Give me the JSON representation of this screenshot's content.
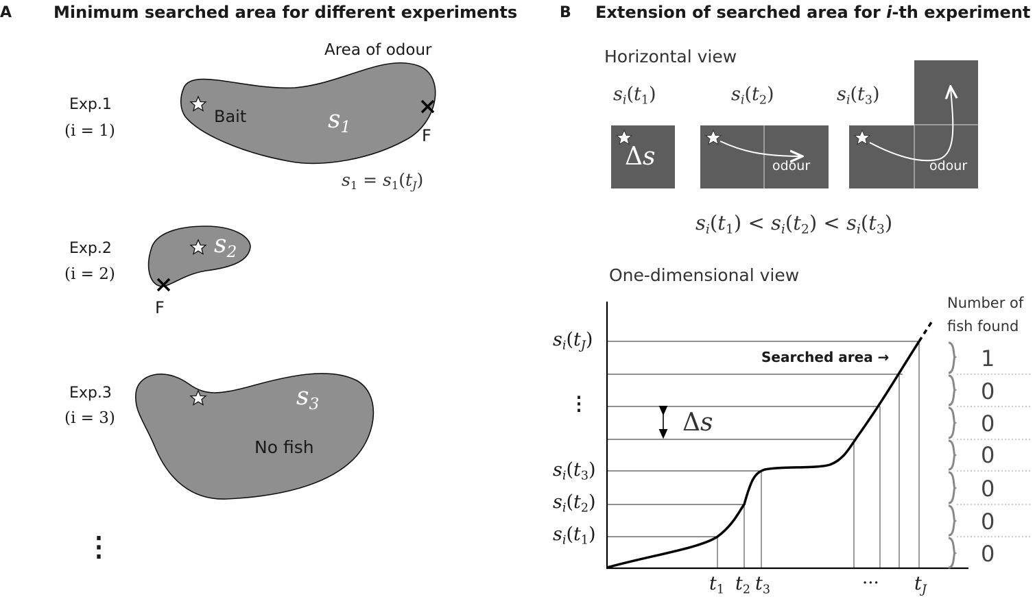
{
  "panelA": {
    "letter": "A",
    "title": "Minimum searched area for different experiments",
    "area_of_odour": "Area of odour",
    "exp1": {
      "label": "Exp.1",
      "index": "(i = 1)",
      "bait": "Bait",
      "fish_mark": "F",
      "region": "s1",
      "equation": "s1 = s1(tJ)"
    },
    "exp2": {
      "label": "Exp.2",
      "index": "(i = 2)",
      "fish_mark": "F",
      "region": "s2"
    },
    "exp3": {
      "label": "Exp.3",
      "index": "(i = 3)",
      "region": "s3",
      "no_fish": "No fish"
    },
    "continuation": "⋮"
  },
  "panelB": {
    "letter": "B",
    "title_pre": "Extension of searched area for ",
    "title_i": "i",
    "title_post": "-th experiment",
    "horizontal_view": "Horizontal view",
    "boxes": [
      {
        "label": "si(t1)",
        "content": "Δs"
      },
      {
        "label": "si(t2)",
        "content": "odour"
      },
      {
        "label": "si(t3)",
        "content": "odour"
      }
    ],
    "inequality": "si(t1) < si(t2) < si(t3)",
    "one_dim_view": "One-dimensional view",
    "number_of_fish_found": [
      "Number of",
      "fish found"
    ],
    "searched_area": "Searched area →",
    "delta_s": "Δs",
    "y_labels": [
      "si(tJ)",
      "⋮",
      "si(t3)",
      "si(t2)",
      "si(t1)"
    ],
    "x_labels": [
      "t1",
      "t2",
      "t3",
      "···",
      "tJ"
    ],
    "fish_counts": [
      "1",
      "0",
      "0",
      "0",
      "0",
      "0",
      "0"
    ]
  }
}
